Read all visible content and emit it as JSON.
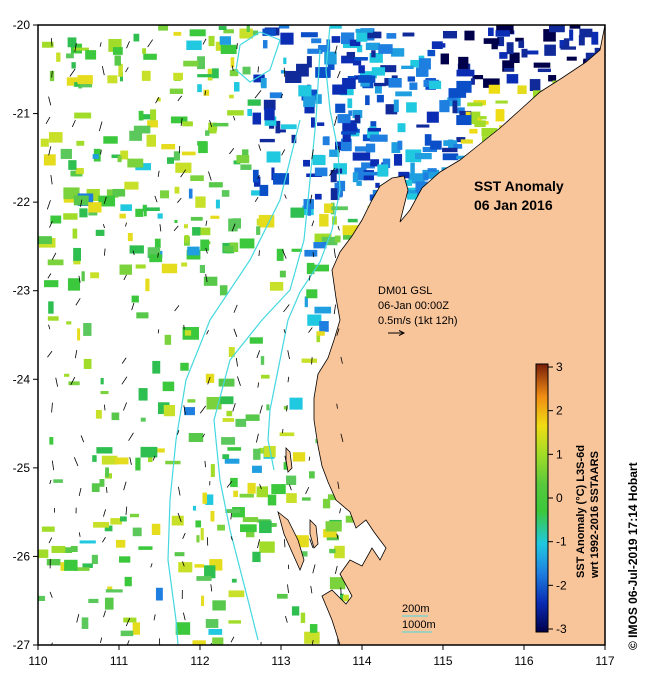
{
  "map": {
    "title_line1": "SST Anomaly",
    "title_line2": "06 Jan 2016",
    "x_ticks": [
      "110",
      "111",
      "112",
      "113",
      "114",
      "115",
      "116",
      "117"
    ],
    "y_ticks": [
      "-20",
      "-21",
      "-22",
      "-23",
      "-24",
      "-25",
      "-26",
      "-27"
    ],
    "land_color": "#f8c49a",
    "ocean_background": "#ffffff",
    "isobath_color": "#44d8e0"
  },
  "current_info": {
    "line1": "DM01 GSL",
    "line2": "06-Jan 00:00Z",
    "line3": "0.5m/s (1kt 12h)"
  },
  "isobath_legend": {
    "shallow_label": "200m",
    "deep_label": "1000m"
  },
  "colorbar": {
    "ticks": [
      "3",
      "2",
      "1",
      "0",
      "-1",
      "-2",
      "-3"
    ],
    "label_line1": "SST Anomaly (°C) L3S-6d",
    "label_line2": "wrt 1992-2016 SSTAARS",
    "colors": [
      "#00004a",
      "#0a2db4",
      "#1f7fe0",
      "#20c8e0",
      "#3cc83c",
      "#a0dc28",
      "#f0dc14",
      "#f08c14",
      "#c83c14",
      "#781e0a"
    ]
  },
  "credit": "© IMOS 06-Jul-2019 17:14 Hobart"
}
